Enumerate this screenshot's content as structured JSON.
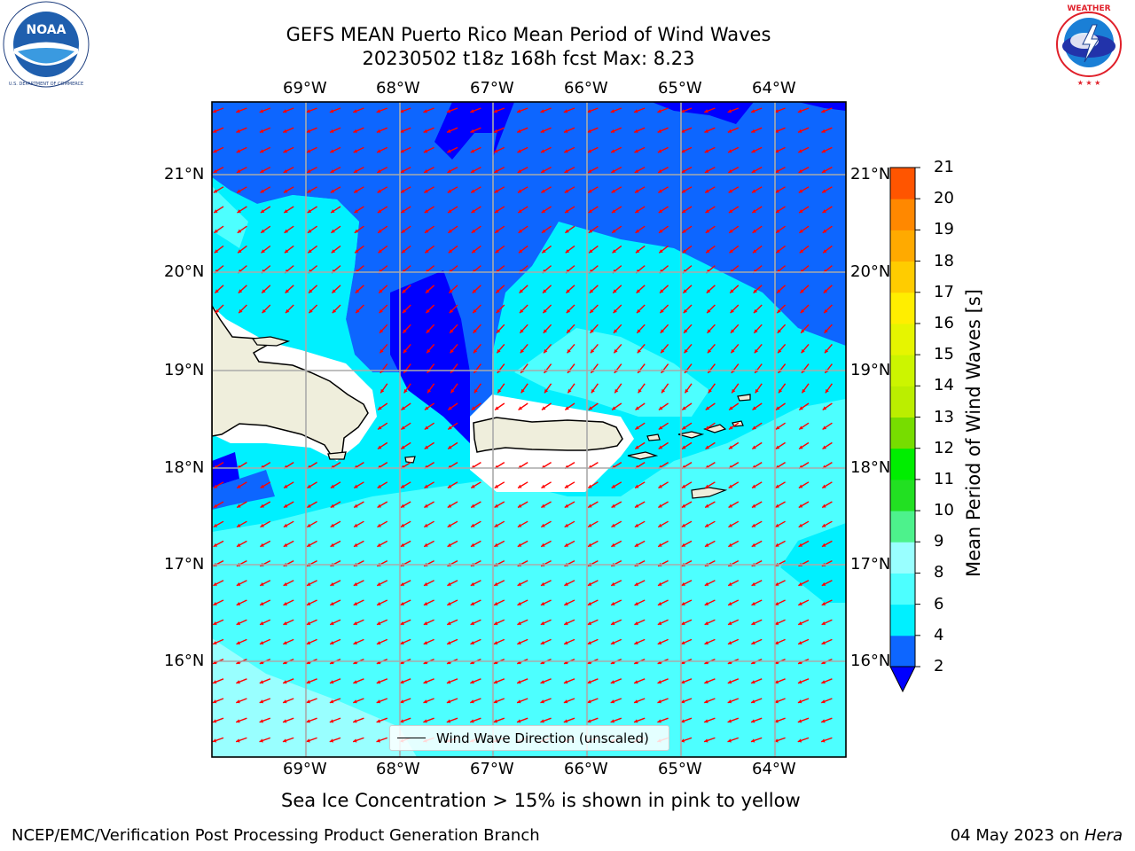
{
  "title": {
    "line1": "GEFS MEAN Puerto Rico Mean Period of Wind Waves",
    "line2": "20230502 t18z 168h fcst   Max: 8.23"
  },
  "logos": {
    "left": {
      "name": "NOAA",
      "ring_text": "NATIONAL OCEANIC AND ATMOSPHERIC ADMINISTRATION",
      "bottom_text": "U.S. DEPARTMENT OF COMMERCE",
      "color": "#1f5fae"
    },
    "right": {
      "name": "NATIONAL WEATHER SERVICE",
      "ring_color": "#e0202a",
      "color": "#1a7fd6"
    }
  },
  "map": {
    "lon_labels": [
      "69°W",
      "68°W",
      "67°W",
      "66°W",
      "65°W",
      "64°W"
    ],
    "lat_labels": [
      "21°N",
      "20°N",
      "19°N",
      "18°N",
      "17°N",
      "16°N"
    ],
    "land_color": "#efeedc",
    "arrow_color": "#ff0000",
    "legend_label": "Wind Wave Direction (unscaled)"
  },
  "colorbar": {
    "label": "Mean Period of Wind Waves [s]",
    "ticks": [
      "2",
      "4",
      "6",
      "8",
      "9",
      "10",
      "11",
      "12",
      "13",
      "14",
      "15",
      "16",
      "17",
      "18",
      "19",
      "20",
      "21"
    ],
    "colors": [
      "#0d66ff",
      "#00f0ff",
      "#4dffff",
      "#99ffff",
      "#4df28c",
      "#22e022",
      "#00ee00",
      "#77dd00",
      "#bbee00",
      "#ccf500",
      "#e6f500",
      "#ffee00",
      "#ffcc00",
      "#ffaa00",
      "#ff8800",
      "#ff5500",
      "#ff2200",
      "#ff0000"
    ],
    "under_color": "#0000ff"
  },
  "footer": {
    "note": "Sea Ice Concentration > 15% is shown in pink to yellow",
    "branch": "NCEP/EMC/Verification Post Processing Product Generation Branch",
    "date": "04 May 2023 on ",
    "machine": "Hera"
  }
}
